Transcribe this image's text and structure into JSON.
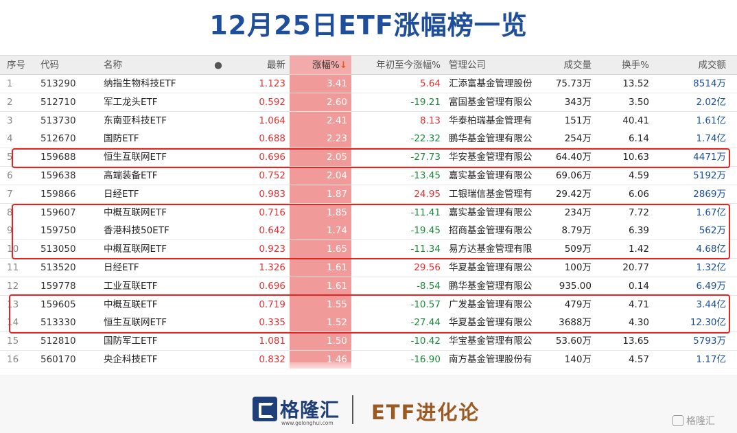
{
  "page": {
    "title": "12月25日ETF涨幅榜一览"
  },
  "table": {
    "headers": {
      "idx": "序号",
      "code": "代码",
      "name": "名称",
      "dot": "●",
      "latest": "最新",
      "chg": "涨幅%",
      "chg_sort": "↓",
      "ytd": "年初至今涨幅%",
      "mgr": "管理公司",
      "vol": "成交量",
      "turn": "换手%",
      "amt": "成交额"
    },
    "rows": [
      {
        "idx": "1",
        "code": "513290",
        "name": "纳指生物科技ETF",
        "latest": "1.123",
        "chg": "3.41",
        "ytd": "5.64",
        "ytd_dir": "pos",
        "mgr": "汇添富基金管理股份",
        "vol": "75.73万",
        "turn": "13.52",
        "amt": "8514万"
      },
      {
        "idx": "2",
        "code": "512710",
        "name": "军工龙头ETF",
        "latest": "0.592",
        "chg": "2.60",
        "ytd": "-19.21",
        "ytd_dir": "neg",
        "mgr": "富国基金管理有限公",
        "vol": "343万",
        "turn": "3.50",
        "amt": "2.02亿"
      },
      {
        "idx": "3",
        "code": "513730",
        "name": "东南亚科技ETF",
        "latest": "1.064",
        "chg": "2.41",
        "ytd": "8.13",
        "ytd_dir": "pos",
        "mgr": "华泰柏瑞基金管理有",
        "vol": "151万",
        "turn": "40.41",
        "amt": "1.61亿"
      },
      {
        "idx": "4",
        "code": "512670",
        "name": "国防ETF",
        "latest": "0.688",
        "chg": "2.23",
        "ytd": "-22.32",
        "ytd_dir": "neg",
        "mgr": "鹏华基金管理有限公",
        "vol": "254万",
        "turn": "6.14",
        "amt": "1.74亿"
      },
      {
        "idx": "5",
        "code": "159688",
        "name": "恒生互联网ETF",
        "latest": "0.696",
        "chg": "2.05",
        "ytd": "-27.73",
        "ytd_dir": "neg",
        "mgr": "华安基金管理有限公",
        "vol": "64.40万",
        "turn": "10.63",
        "amt": "4471万"
      },
      {
        "idx": "6",
        "code": "159638",
        "name": "高端装备ETF",
        "latest": "0.752",
        "chg": "2.04",
        "ytd": "-13.45",
        "ytd_dir": "neg",
        "mgr": "嘉实基金管理有限公",
        "vol": "69.06万",
        "turn": "4.59",
        "amt": "5192万"
      },
      {
        "idx": "7",
        "code": "159866",
        "name": "日经ETF",
        "latest": "0.983",
        "chg": "1.87",
        "ytd": "24.95",
        "ytd_dir": "pos",
        "mgr": "工银瑞信基金管理有",
        "vol": "29.42万",
        "turn": "6.06",
        "amt": "2869万"
      },
      {
        "idx": "8",
        "code": "159607",
        "name": "中概互联网ETF",
        "latest": "0.716",
        "chg": "1.85",
        "ytd": "-11.41",
        "ytd_dir": "neg",
        "mgr": "嘉实基金管理有限公",
        "vol": "234万",
        "turn": "7.72",
        "amt": "1.67亿"
      },
      {
        "idx": "9",
        "code": "159750",
        "name": "香港科技50ETF",
        "latest": "0.642",
        "chg": "1.74",
        "ytd": "-19.45",
        "ytd_dir": "neg",
        "mgr": "招商基金管理有限公",
        "vol": "8.79万",
        "turn": "6.39",
        "amt": "562万"
      },
      {
        "idx": "10",
        "code": "513050",
        "name": "中概互联网ETF",
        "latest": "0.923",
        "chg": "1.65",
        "ytd": "-11.34",
        "ytd_dir": "neg",
        "mgr": "易方达基金管理有限",
        "vol": "509万",
        "turn": "1.42",
        "amt": "4.68亿"
      },
      {
        "idx": "11",
        "code": "513520",
        "name": "日经ETF",
        "latest": "1.326",
        "chg": "1.61",
        "ytd": "29.56",
        "ytd_dir": "pos",
        "mgr": "华夏基金管理有限公",
        "vol": "100万",
        "turn": "20.77",
        "amt": "1.32亿"
      },
      {
        "idx": "12",
        "code": "159778",
        "name": "工业互联ETF",
        "latest": "0.696",
        "chg": "1.61",
        "ytd": "-8.54",
        "ytd_dir": "neg",
        "mgr": "鹏华基金管理有限公",
        "vol": "935.00",
        "turn": "0.14",
        "amt": "6.49万"
      },
      {
        "idx": "13",
        "code": "159605",
        "name": "中概互联ETF",
        "latest": "0.719",
        "chg": "1.55",
        "ytd": "-10.57",
        "ytd_dir": "neg",
        "mgr": "广发基金管理有限公",
        "vol": "479万",
        "turn": "4.71",
        "amt": "3.44亿"
      },
      {
        "idx": "14",
        "code": "513330",
        "name": "恒生互联网ETF",
        "latest": "0.335",
        "chg": "1.52",
        "ytd": "-27.44",
        "ytd_dir": "neg",
        "mgr": "华夏基金管理有限公",
        "vol": "3688万",
        "turn": "4.30",
        "amt": "12.30亿"
      },
      {
        "idx": "15",
        "code": "512810",
        "name": "国防军工ETF",
        "latest": "1.081",
        "chg": "1.50",
        "ytd": "-10.42",
        "ytd_dir": "neg",
        "mgr": "华宝基金管理有限公",
        "vol": "53.60万",
        "turn": "13.65",
        "amt": "5793万"
      },
      {
        "idx": "16",
        "code": "560170",
        "name": "央企科技ETF",
        "latest": "0.832",
        "chg": "1.46",
        "ytd": "-16.90",
        "ytd_dir": "neg",
        "mgr": "南方基金管理股份有",
        "vol": "140万",
        "turn": "4.57",
        "amt": "1.17亿"
      }
    ]
  },
  "colors": {
    "title": "#1f4e9a",
    "highlight_box": "#e8231f",
    "chg_bg": "#f19a9a",
    "up": "#e03030",
    "down": "#1a8a3a",
    "amount": "#1a4f9a"
  },
  "footer": {
    "logo_cn": "格隆汇",
    "logo_url": "www.gelonghui.com",
    "brand": "ETF进化论",
    "watermark": "格隆汇"
  }
}
